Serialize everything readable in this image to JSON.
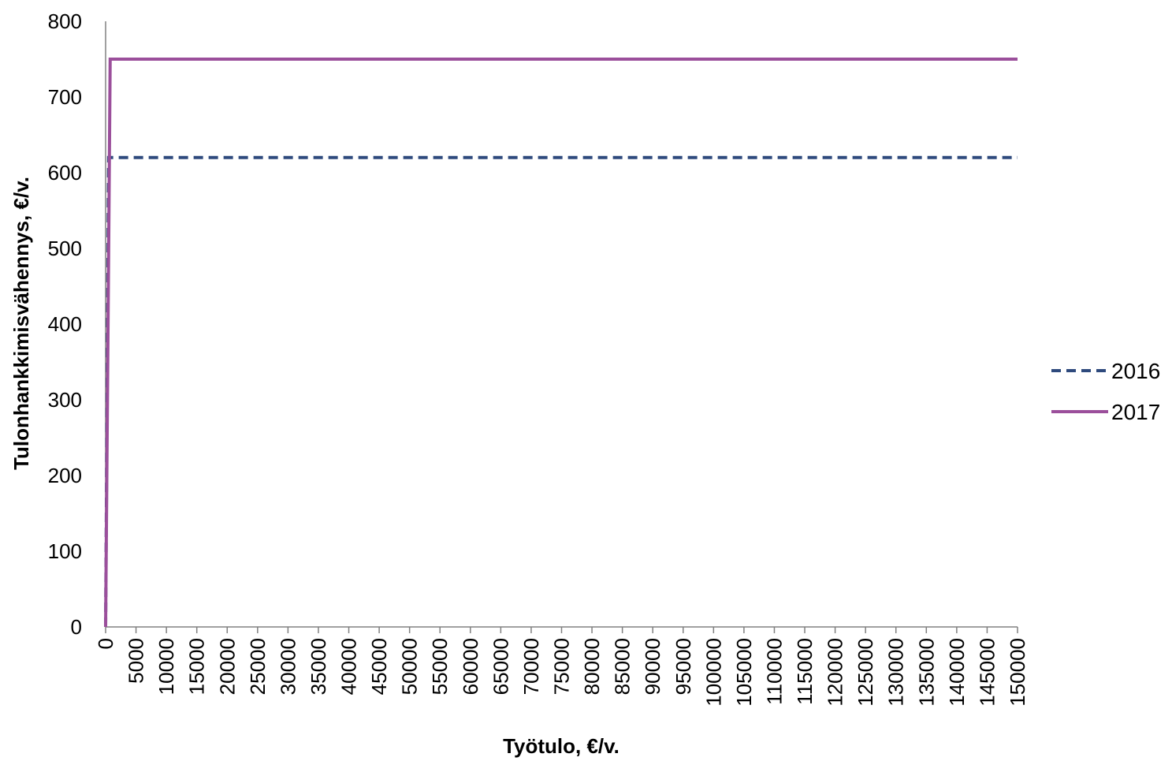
{
  "chart_data": {
    "type": "line",
    "title": "",
    "xlabel": "Työtulo, €/v.",
    "ylabel": "Tulonhankkimisvähennys, €/v.",
    "xlim": [
      0,
      150000
    ],
    "ylim": [
      0,
      800
    ],
    "x_ticks": [
      "0",
      "5000",
      "10000",
      "15000",
      "20000",
      "25000",
      "30000",
      "35000",
      "40000",
      "45000",
      "50000",
      "55000",
      "60000",
      "65000",
      "70000",
      "75000",
      "80000",
      "85000",
      "90000",
      "95000",
      "100000",
      "105000",
      "110000",
      "115000",
      "120000",
      "125000",
      "130000",
      "135000",
      "140000",
      "145000",
      "150000"
    ],
    "y_ticks": [
      "0",
      "100",
      "200",
      "300",
      "400",
      "500",
      "600",
      "700",
      "800"
    ],
    "grid": false,
    "legend_position": "right",
    "series": [
      {
        "name": "2016",
        "style": "dashed",
        "color": "#2e4a7d",
        "x": [
          0,
          500,
          150000
        ],
        "y": [
          0,
          620,
          620
        ]
      },
      {
        "name": "2017",
        "style": "solid",
        "color": "#9b4f9b",
        "x": [
          0,
          750,
          150000
        ],
        "y": [
          0,
          750,
          750
        ]
      }
    ]
  }
}
